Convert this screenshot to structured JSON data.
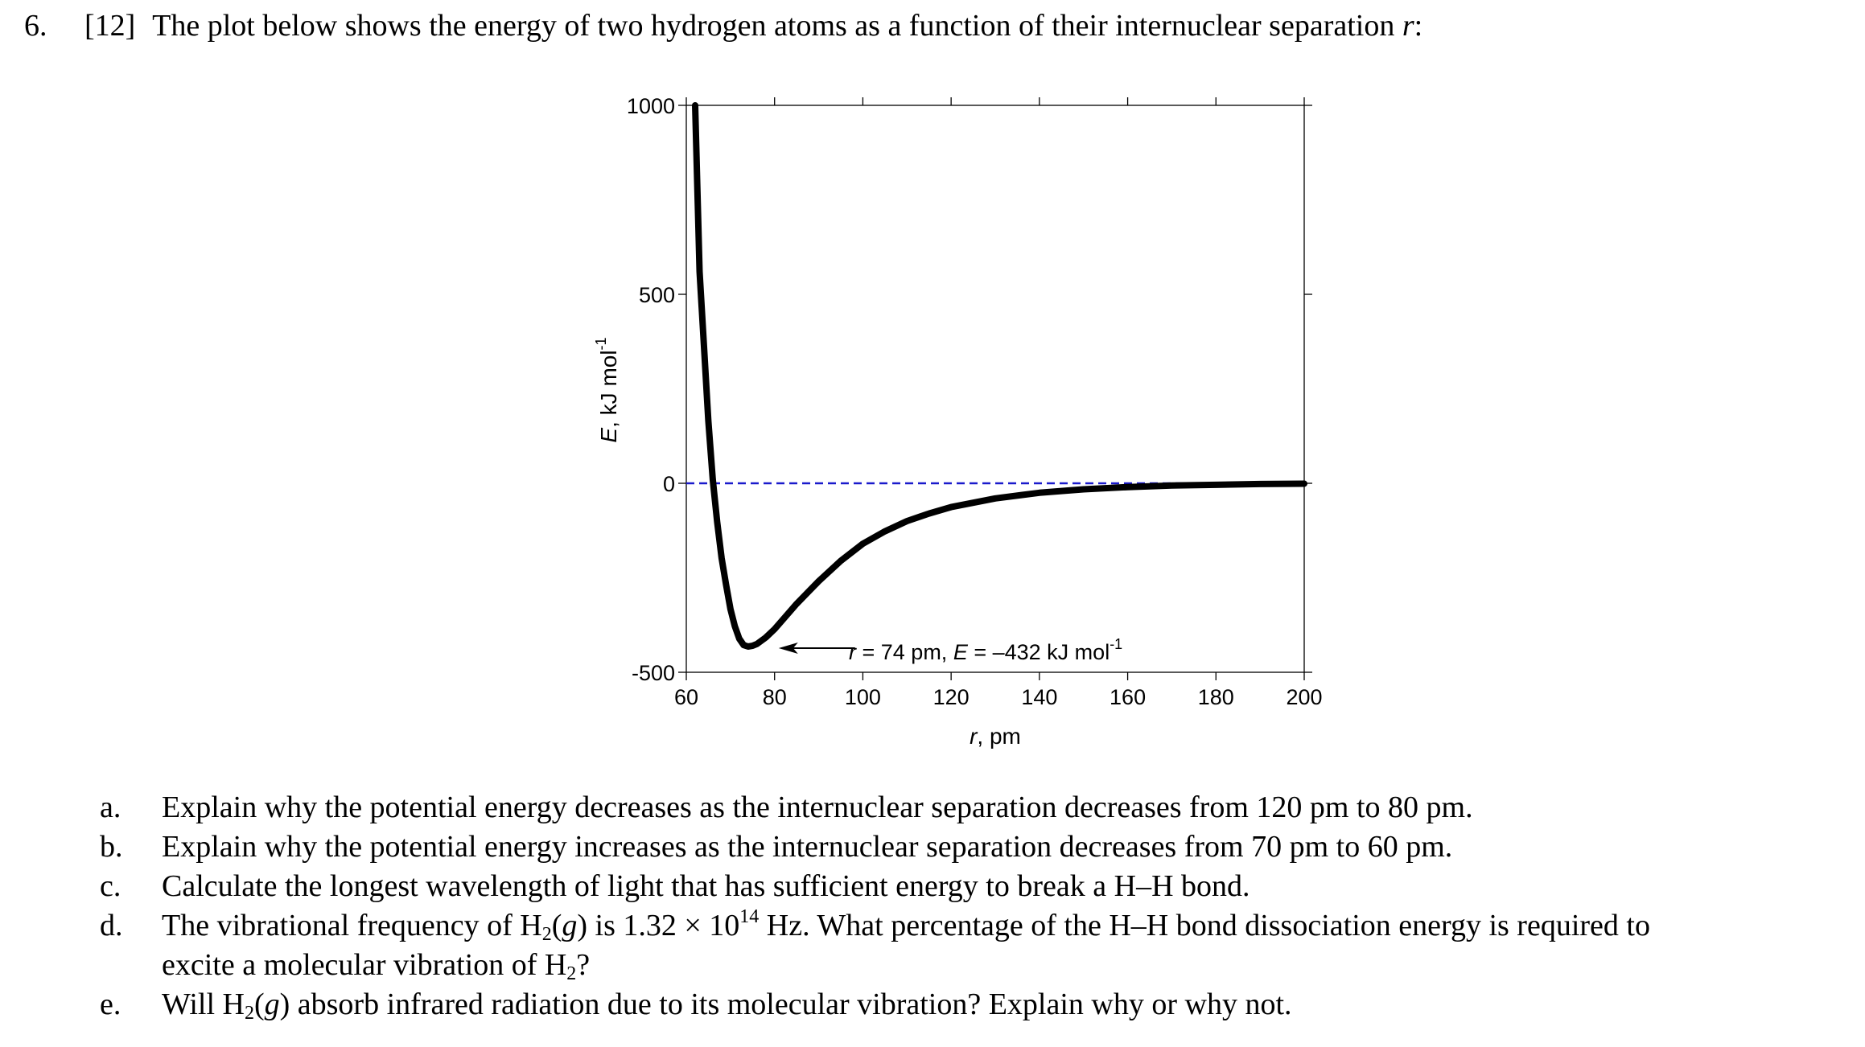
{
  "question": {
    "number": "6.",
    "points": "[12]",
    "text_before": "The plot below shows the energy of two hydrogen atoms as a function of their internuclear separation",
    "variable": "r",
    "text_after": ":"
  },
  "chart_data": {
    "type": "line",
    "title": "",
    "xlabel_var": "r",
    "xlabel_unit": ", pm",
    "ylabel_var": "E",
    "ylabel_unit": ", kJ mol",
    "ylabel_exp": "-1",
    "xlim": [
      60,
      200
    ],
    "ylim": [
      -500,
      1000
    ],
    "x_ticks": [
      60,
      80,
      100,
      120,
      140,
      160,
      180,
      200
    ],
    "y_ticks": [
      1000,
      500,
      0,
      -500
    ],
    "x_tick_labels": [
      "60",
      "80",
      "100",
      "120",
      "140",
      "160",
      "180",
      "200"
    ],
    "y_tick_labels": [
      "1000",
      "500",
      "0",
      "-500"
    ],
    "grid": false,
    "series": [
      {
        "color": "#000000",
        "x": [
          62,
          63,
          64,
          65,
          66,
          67,
          68,
          69,
          70,
          71,
          72,
          73,
          74,
          75,
          76,
          78,
          80,
          85,
          90,
          95,
          100,
          105,
          110,
          115,
          120,
          130,
          140,
          150,
          160,
          170,
          180,
          190,
          200
        ],
        "y": [
          1000,
          560,
          365,
          165,
          10,
          -103,
          -198,
          -268,
          -333,
          -378,
          -411,
          -428,
          -432,
          -430,
          -425,
          -408,
          -386,
          -319,
          -259,
          -205,
          -160,
          -127,
          -100,
          -80,
          -63,
          -40,
          -25,
          -16,
          -10,
          -6,
          -4,
          -2,
          -1
        ]
      }
    ],
    "reference_line": {
      "y": 0,
      "color": "#1a1acc",
      "style": "dashed"
    },
    "annotation": {
      "var1": "r",
      "mid1": " = 74 pm, ",
      "var2": "E",
      "mid2": " = –432 kJ mol",
      "exp": "-1",
      "point_x": 74,
      "point_y": -432
    }
  },
  "parts": [
    {
      "letter": "a.",
      "text": "Explain why the potential energy decreases as the internuclear separation decreases from 120 pm to 80 pm."
    },
    {
      "letter": "b.",
      "text": "Explain why the potential energy increases as the internuclear separation decreases from 70 pm to 60 pm."
    },
    {
      "letter": "c.",
      "text": "Calculate the longest wavelength of light that has sufficient energy to break a H–H bond."
    },
    {
      "letter": "d.",
      "t1": "The vibrational frequency of H",
      "s1": "2",
      "t2": "(",
      "i1": "g",
      "t3": ") is 1.32 × 10",
      "e1": "14",
      "t4": " Hz.  What percentage of the H–H bond dissociation energy is required to",
      "line2": "excite a molecular vibration of H",
      "s2": "2",
      "t5": "?"
    },
    {
      "letter": "e.",
      "t1": "Will H",
      "s1": "2",
      "t2": "(",
      "i1": "g",
      "t3": ") absorb infrared radiation due to its molecular vibration?  Explain why or why not."
    }
  ]
}
